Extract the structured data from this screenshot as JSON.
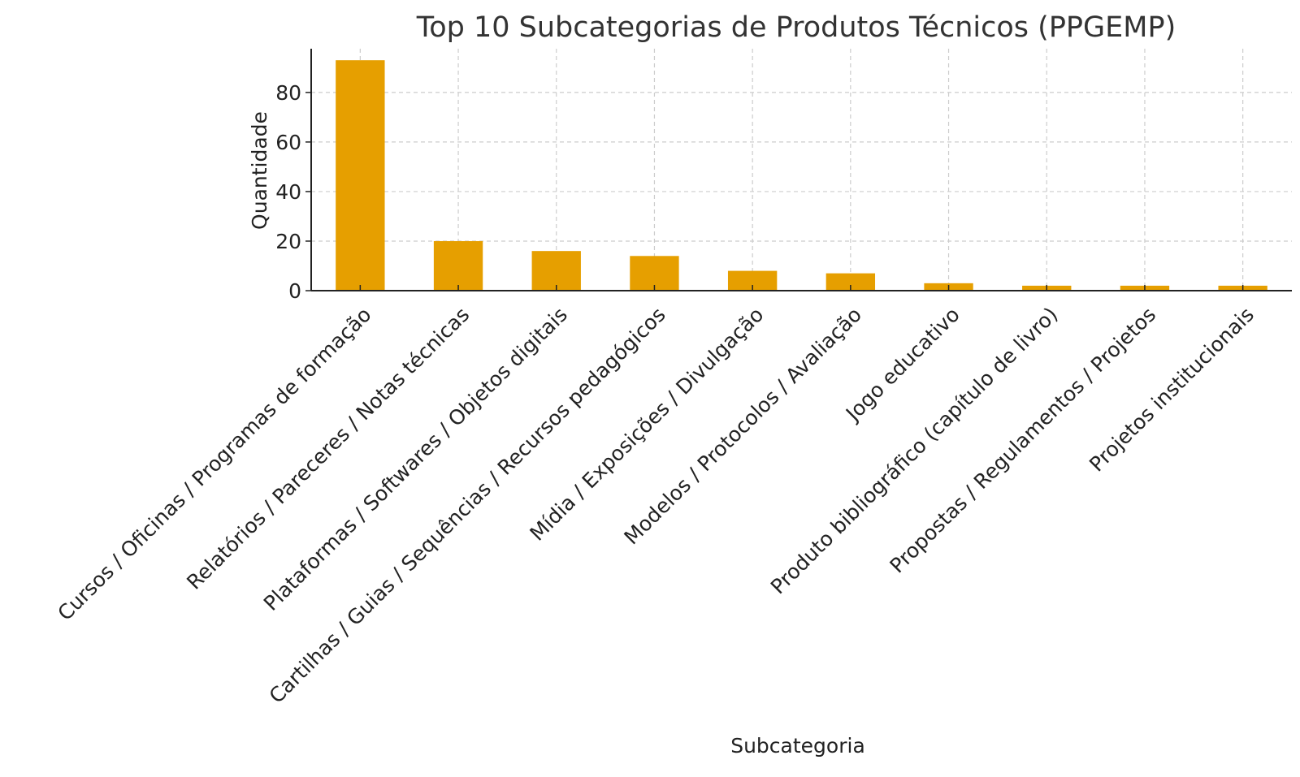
{
  "chart_data": {
    "type": "bar",
    "title": "Top 10 Subcategorias de Produtos Técnicos (PPGEMP)",
    "xlabel": "Subcategoria",
    "ylabel": "Quantidade",
    "categories": [
      "Cursos / Oficinas / Programas de formação",
      "Relatórios / Pareceres / Notas técnicas",
      "Plataformas / Softwares / Objetos digitais",
      "Cartilhas / Guias / Sequências / Recursos pedagógicos",
      "Mídia / Exposições / Divulgação",
      "Modelos / Protocolos / Avaliação",
      "Jogo educativo",
      "Produto bibliográfico (capítulo de livro)",
      "Propostas / Regulamentos / Projetos",
      "Projetos institucionais"
    ],
    "values": [
      93,
      20,
      16,
      14,
      8,
      7,
      3,
      2,
      2,
      2
    ],
    "ylim": [
      0,
      97.65
    ],
    "yticks": [
      0,
      20,
      40,
      60,
      80
    ],
    "grid": true,
    "bar_color": "#E69F00",
    "grid_color": "#CCCCCC",
    "axis_color": "#222222",
    "title_color": "#333333"
  }
}
